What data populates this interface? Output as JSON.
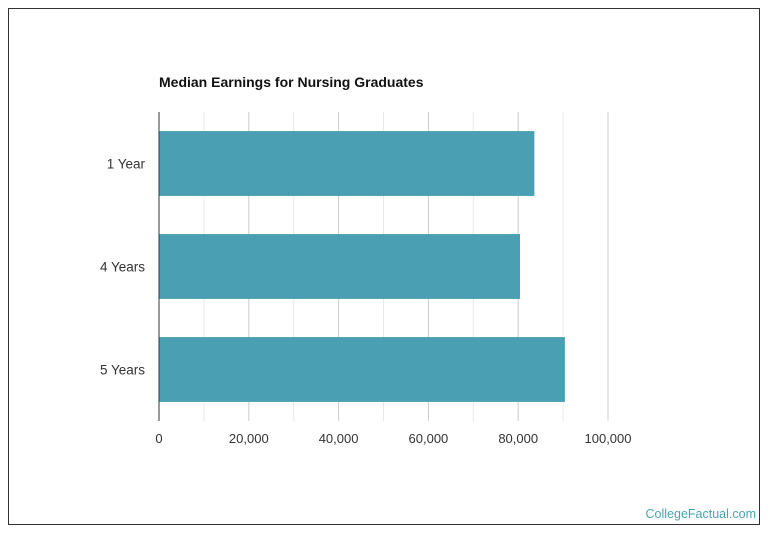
{
  "chart_data": {
    "type": "bar",
    "orientation": "horizontal",
    "title": "Median Earnings for Nursing Graduates",
    "categories": [
      "1 Year",
      "4 Years",
      "5 Years"
    ],
    "values": [
      83600,
      80400,
      90400
    ],
    "xlim": [
      0,
      100000
    ],
    "xticks": [
      "0",
      "20,000",
      "40,000",
      "60,000",
      "80,000",
      "100,000"
    ],
    "grid": true,
    "bar_color": "#4aa0b2"
  },
  "footer": {
    "brand": "CollegeFactual.com",
    "brand_color": "#4aa3b3"
  }
}
